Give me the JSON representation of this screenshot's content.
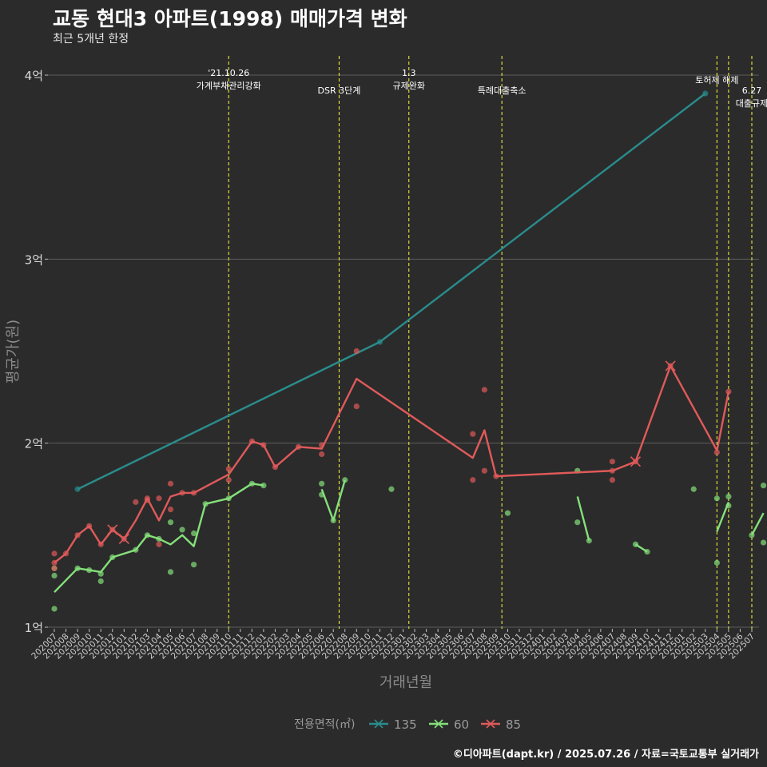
{
  "title": "교동 현대3 아파트(1998) 매매가격 변화",
  "subtitle": "최근 5개년 한정",
  "caption": "©디아파트(dapt.kr) / 2025.07.26 / 자료=국토교통부 실거래가",
  "chart_data": {
    "type": "line",
    "xlabel": "거래년월",
    "ylabel": "평균가(원)",
    "x": [
      "202007",
      "202008",
      "202009",
      "202010",
      "202011",
      "202012",
      "202101",
      "202102",
      "202103",
      "202104",
      "202105",
      "202106",
      "202107",
      "202108",
      "202109",
      "202110",
      "202111",
      "202112",
      "202201",
      "202202",
      "202203",
      "202204",
      "202205",
      "202206",
      "202207",
      "202208",
      "202209",
      "202210",
      "202211",
      "202212",
      "202301",
      "202302",
      "202303",
      "202304",
      "202305",
      "202306",
      "202307",
      "202308",
      "202309",
      "202310",
      "202311",
      "202312",
      "202401",
      "202402",
      "202403",
      "202404",
      "202405",
      "202406",
      "202407",
      "202408",
      "202409",
      "202410",
      "202411",
      "202412",
      "202501",
      "202502",
      "202503",
      "202504",
      "202505",
      "202506",
      "202507"
    ],
    "yticks": [
      1,
      2,
      3,
      4
    ],
    "ytick_labels": [
      "1억",
      "2억",
      "3억",
      "4억"
    ],
    "ylim": [
      0.95,
      4.1
    ],
    "grid": true,
    "legend": {
      "title": "전용면적(㎡)",
      "position": "bottom",
      "entries": [
        "135",
        "60",
        "85"
      ]
    },
    "series": [
      {
        "name": "135",
        "color": "#2a8c8c",
        "line": [
          [
            2,
            1.75
          ],
          [
            28,
            2.55
          ],
          [
            56,
            3.9
          ]
        ],
        "points": [
          [
            2,
            1.75
          ],
          [
            28,
            2.55
          ],
          [
            56,
            3.9
          ]
        ],
        "crosses": []
      },
      {
        "name": "60",
        "color": "#85e07a",
        "line": [
          [
            [
              0,
              1.19
            ],
            [
              2,
              1.32
            ],
            [
              3,
              1.31
            ],
            [
              4,
              1.3
            ],
            [
              5,
              1.38
            ],
            [
              7,
              1.42
            ],
            [
              8,
              1.5
            ],
            [
              9,
              1.48
            ],
            [
              10,
              1.45
            ],
            [
              11,
              1.5
            ],
            [
              12,
              1.44
            ],
            [
              13,
              1.67
            ],
            [
              15,
              1.7
            ],
            [
              17,
              1.78
            ],
            [
              18,
              1.77
            ]
          ],
          [
            [
              23,
              1.75
            ],
            [
              24,
              1.58
            ],
            [
              25,
              1.8
            ]
          ],
          [
            [
              45,
              1.71
            ],
            [
              46,
              1.47
            ]
          ],
          [
            [
              50,
              1.45
            ],
            [
              51,
              1.41
            ]
          ],
          [
            [
              57,
              1.52
            ],
            [
              58,
              1.68
            ]
          ],
          [
            [
              60,
              1.5
            ],
            [
              61,
              1.62
            ]
          ]
        ],
        "points": [
          [
            0,
            1.1
          ],
          [
            0,
            1.28
          ],
          [
            0,
            1.32
          ],
          [
            2,
            1.32
          ],
          [
            3,
            1.31
          ],
          [
            4,
            1.25
          ],
          [
            4,
            1.29
          ],
          [
            5,
            1.38
          ],
          [
            7,
            1.42
          ],
          [
            8,
            1.5
          ],
          [
            9,
            1.48
          ],
          [
            10,
            1.3
          ],
          [
            10,
            1.57
          ],
          [
            11,
            1.53
          ],
          [
            12,
            1.34
          ],
          [
            12,
            1.51
          ],
          [
            13,
            1.67
          ],
          [
            15,
            1.7
          ],
          [
            17,
            1.78
          ],
          [
            18,
            1.77
          ],
          [
            23,
            1.78
          ],
          [
            23,
            1.72
          ],
          [
            24,
            1.58
          ],
          [
            25,
            1.8
          ],
          [
            29,
            1.75
          ],
          [
            39,
            1.62
          ],
          [
            45,
            1.85
          ],
          [
            45,
            1.57
          ],
          [
            46,
            1.47
          ],
          [
            50,
            1.45
          ],
          [
            51,
            1.41
          ],
          [
            55,
            1.75
          ],
          [
            57,
            1.35
          ],
          [
            57,
            1.7
          ],
          [
            58,
            1.71
          ],
          [
            58,
            1.66
          ],
          [
            60,
            1.5
          ],
          [
            61,
            1.46
          ],
          [
            61,
            1.77
          ]
        ],
        "crosses": []
      },
      {
        "name": "85",
        "color": "#e05a5a",
        "line": [
          [
            [
              0,
              1.35
            ],
            [
              1,
              1.4
            ],
            [
              2,
              1.5
            ],
            [
              3,
              1.55
            ],
            [
              4,
              1.45
            ],
            [
              5,
              1.53
            ],
            [
              6,
              1.48
            ],
            [
              7,
              1.58
            ],
            [
              8,
              1.7
            ],
            [
              9,
              1.58
            ],
            [
              10,
              1.71
            ],
            [
              11,
              1.73
            ],
            [
              12,
              1.73
            ],
            [
              15,
              1.83
            ],
            [
              17,
              2.01
            ],
            [
              18,
              1.99
            ],
            [
              19,
              1.87
            ],
            [
              21,
              1.98
            ],
            [
              23,
              1.97
            ],
            [
              26,
              2.35
            ],
            [
              36,
              1.92
            ],
            [
              37,
              2.07
            ],
            [
              38,
              1.82
            ],
            [
              48,
              1.85
            ],
            [
              50,
              1.9
            ],
            [
              53,
              2.42
            ],
            [
              57,
              1.96
            ],
            [
              58,
              2.28
            ]
          ]
        ],
        "points": [
          [
            0,
            1.4
          ],
          [
            0,
            1.35
          ],
          [
            0,
            1.32
          ],
          [
            1,
            1.4
          ],
          [
            2,
            1.5
          ],
          [
            3,
            1.55
          ],
          [
            4,
            1.45
          ],
          [
            5,
            1.53
          ],
          [
            6,
            1.48
          ],
          [
            7,
            1.68
          ],
          [
            8,
            1.7
          ],
          [
            8,
            1.69
          ],
          [
            9,
            1.45
          ],
          [
            9,
            1.7
          ],
          [
            10,
            1.64
          ],
          [
            10,
            1.78
          ],
          [
            11,
            1.73
          ],
          [
            12,
            1.73
          ],
          [
            15,
            1.86
          ],
          [
            15,
            1.8
          ],
          [
            17,
            2.01
          ],
          [
            18,
            1.99
          ],
          [
            19,
            1.87
          ],
          [
            21,
            1.98
          ],
          [
            23,
            1.94
          ],
          [
            23,
            1.99
          ],
          [
            26,
            2.5
          ],
          [
            26,
            2.2
          ],
          [
            36,
            2.05
          ],
          [
            36,
            1.8
          ],
          [
            37,
            2.29
          ],
          [
            37,
            1.85
          ],
          [
            38,
            1.82
          ],
          [
            48,
            1.85
          ],
          [
            48,
            1.9
          ],
          [
            48,
            1.8
          ],
          [
            50,
            1.9
          ],
          [
            53,
            2.42
          ],
          [
            57,
            1.95
          ],
          [
            58,
            2.28
          ]
        ],
        "crosses": [
          [
            5,
            1.53
          ],
          [
            6,
            1.48
          ],
          [
            50,
            1.9
          ],
          [
            53,
            2.42
          ]
        ]
      }
    ],
    "annotations": [
      {
        "x": 15,
        "lines": [
          "'21.10.26",
          "가계부채관리강화"
        ],
        "row": 0
      },
      {
        "x": 24.5,
        "lines": [
          "DSR 3단계"
        ],
        "row": 1
      },
      {
        "x": 30.5,
        "lines": [
          "1.3",
          "규제완화"
        ],
        "row": 0
      },
      {
        "x": 38.5,
        "lines": [
          "특례대출축소"
        ],
        "row": 1
      },
      {
        "x": 57,
        "lines": [
          "토허제 해제"
        ],
        "row": 0.4
      },
      {
        "x": 58,
        "lines": [],
        "row": 0
      },
      {
        "x": 60,
        "lines": [
          "6.27",
          "대출규제"
        ],
        "row": 1
      }
    ]
  }
}
